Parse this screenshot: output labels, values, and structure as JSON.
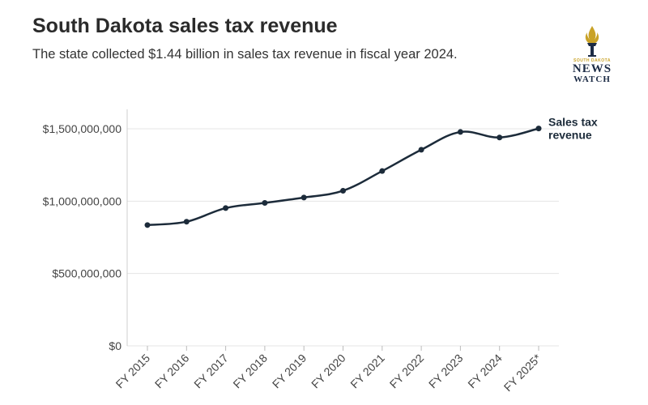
{
  "header": {
    "title": "South Dakota sales tax revenue",
    "subtitle": "The state collected $1.44 billion in sales tax revenue in fiscal year 2024."
  },
  "logo": {
    "icon": "torch-icon",
    "small_text": "SOUTH DAKOTA",
    "line1": "NEWS",
    "line2": "WATCH",
    "colors": {
      "gold": "#c9a227",
      "navy": "#1c2b45"
    }
  },
  "chart_data": {
    "type": "line",
    "title": "South Dakota sales tax revenue",
    "subtitle": "The state collected $1.44 billion in sales tax revenue in fiscal year 2024.",
    "categories": [
      "FY 2015",
      "FY 2016",
      "FY 2017",
      "FY 2018",
      "FY 2019",
      "FY 2020",
      "FY 2021",
      "FY 2022",
      "FY 2023",
      "FY 2024",
      "FY 2025*"
    ],
    "series": [
      {
        "name": "Sales tax revenue",
        "color": "#1c2b3a",
        "values": [
          835000000,
          858000000,
          952000000,
          988000000,
          1025000000,
          1072000000,
          1208000000,
          1355000000,
          1478000000,
          1440000000,
          1502000000
        ]
      }
    ],
    "ylim": [
      0,
      1500000000
    ],
    "yticks": [
      0,
      500000000,
      1000000000,
      1500000000
    ],
    "ytick_labels": [
      "$0",
      "$500,000,000",
      "$1,000,000,000",
      "$1,500,000,000"
    ],
    "xlabel": "",
    "ylabel": "",
    "grid": true,
    "legend": "direct label at line end"
  }
}
